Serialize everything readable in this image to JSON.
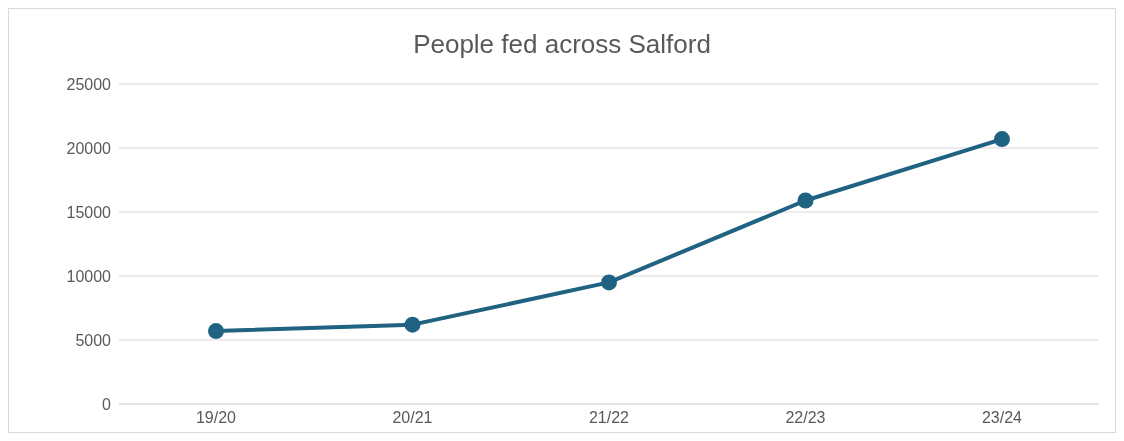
{
  "chart_data": {
    "type": "line",
    "title": "People fed across Salford",
    "categories": [
      "19/20",
      "20/21",
      "21/22",
      "22/23",
      "23/24"
    ],
    "series": [
      {
        "color": "#1f6282",
        "values": [
          5700,
          6200,
          9500,
          15900,
          20700
        ]
      }
    ],
    "ylim": [
      0,
      25000
    ],
    "yticks": [
      0,
      5000,
      10000,
      15000,
      20000,
      25000
    ],
    "grid": "y",
    "marker": "circle",
    "line_style": "solid",
    "legend": false
  }
}
